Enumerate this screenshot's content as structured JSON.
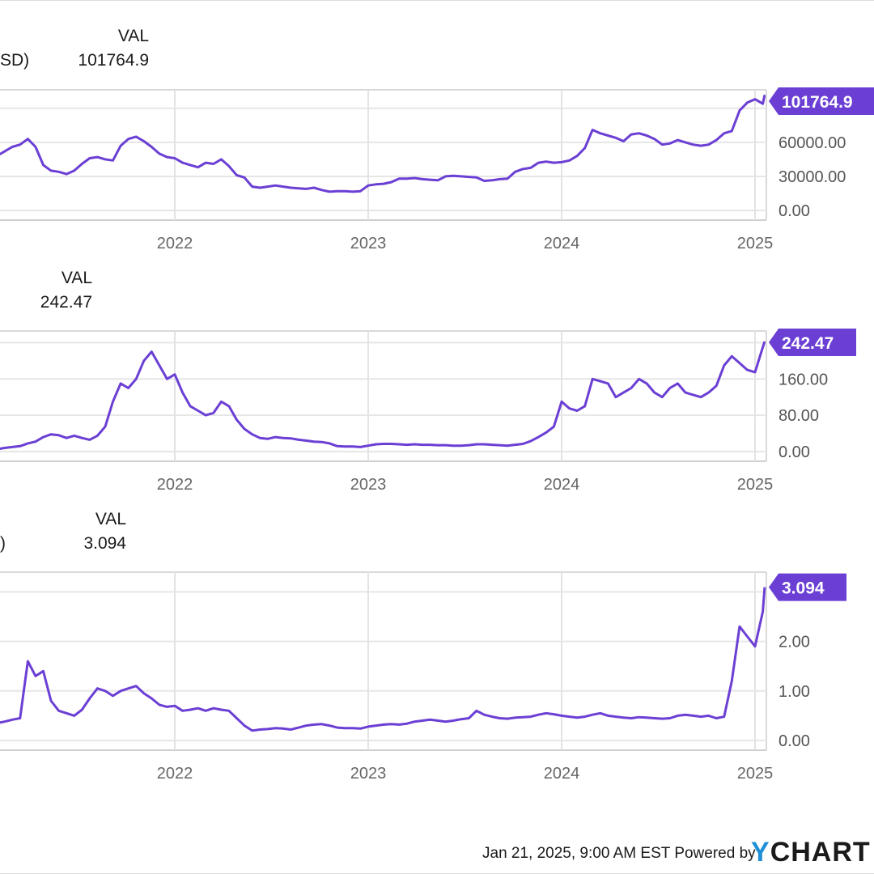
{
  "chart_data": [
    {
      "type": "line",
      "legend": {
        "head": "VAL",
        "series_fragment": "SD)",
        "value": "101764.9"
      },
      "y_ticks": [
        {
          "value": 0,
          "label": "0.00"
        },
        {
          "value": 30000,
          "label": "30000.00"
        },
        {
          "value": 60000,
          "label": "60000.00"
        }
      ],
      "x_ticks": [
        {
          "value": 2022,
          "label": "2022"
        },
        {
          "value": 2023,
          "label": "2023"
        },
        {
          "value": 2024,
          "label": "2024"
        },
        {
          "value": 2025,
          "label": "2025"
        }
      ],
      "last_value": {
        "value": 101764.9,
        "label": "101764.9"
      },
      "color": "#6b3fd4",
      "grid": true,
      "series": [
        {
          "x": [
            2021.08,
            2021.12,
            2021.16,
            2021.2,
            2021.24,
            2021.28,
            2021.32,
            2021.36,
            2021.4,
            2021.44,
            2021.48,
            2021.52,
            2021.56,
            2021.6,
            2021.64,
            2021.68,
            2021.72,
            2021.76,
            2021.8,
            2021.84,
            2021.88,
            2021.92,
            2021.96,
            2022.0,
            2022.04,
            2022.08,
            2022.12,
            2022.16,
            2022.2,
            2022.24,
            2022.28,
            2022.32,
            2022.36,
            2022.4,
            2022.44,
            2022.48,
            2022.52,
            2022.56,
            2022.6,
            2022.64,
            2022.68,
            2022.72,
            2022.76,
            2022.8,
            2022.84,
            2022.88,
            2022.92,
            2022.96,
            2023.0,
            2023.04,
            2023.08,
            2023.12,
            2023.16,
            2023.2,
            2023.24,
            2023.28,
            2023.32,
            2023.36,
            2023.4,
            2023.44,
            2023.48,
            2023.52,
            2023.56,
            2023.6,
            2023.64,
            2023.68,
            2023.72,
            2023.76,
            2023.8,
            2023.84,
            2023.88,
            2023.92,
            2023.96,
            2024.0,
            2024.04,
            2024.08,
            2024.12,
            2024.16,
            2024.2,
            2024.24,
            2024.28,
            2024.32,
            2024.36,
            2024.4,
            2024.44,
            2024.48,
            2024.52,
            2024.56,
            2024.6,
            2024.64,
            2024.68,
            2024.72,
            2024.76,
            2024.8,
            2024.84,
            2024.88,
            2024.92,
            2024.96,
            2025.0,
            2025.04,
            2025.05
          ],
          "values": [
            48000,
            52000,
            56000,
            58000,
            63000,
            56000,
            40000,
            35000,
            34000,
            32000,
            35000,
            41000,
            46000,
            47000,
            45000,
            44000,
            57000,
            63000,
            65000,
            61000,
            56000,
            50000,
            47000,
            46000,
            42000,
            40000,
            38000,
            42000,
            41000,
            45000,
            39000,
            31000,
            29000,
            21000,
            20000,
            21000,
            22000,
            21000,
            20000,
            19500,
            19000,
            20000,
            18000,
            16500,
            17000,
            17000,
            16500,
            17000,
            22000,
            23000,
            23500,
            25000,
            28000,
            28000,
            28500,
            27500,
            27000,
            26500,
            30000,
            30500,
            30000,
            29500,
            29000,
            26000,
            26500,
            27500,
            28000,
            34000,
            36500,
            37500,
            42000,
            43000,
            42000,
            42500,
            44000,
            48000,
            55000,
            71000,
            68000,
            66000,
            64000,
            61000,
            67000,
            68000,
            66000,
            63000,
            58000,
            59000,
            62000,
            60000,
            58000,
            57000,
            58000,
            62000,
            68000,
            70000,
            88000,
            95000,
            98000,
            94000,
            101764.9
          ]
        }
      ]
    },
    {
      "type": "line",
      "legend": {
        "head": "VAL",
        "series_fragment": "",
        "value": "242.47"
      },
      "y_ticks": [
        {
          "value": 0,
          "label": "0.00"
        },
        {
          "value": 80,
          "label": "80.00"
        },
        {
          "value": 160,
          "label": "160.00"
        }
      ],
      "x_ticks": [
        {
          "value": 2022,
          "label": "2022"
        },
        {
          "value": 2023,
          "label": "2023"
        },
        {
          "value": 2024,
          "label": "2024"
        },
        {
          "value": 2025,
          "label": "2025"
        }
      ],
      "last_value": {
        "value": 242.47,
        "label": "242.47"
      },
      "color": "#6b3fd4",
      "grid": true,
      "series": [
        {
          "x": [
            2021.08,
            2021.12,
            2021.16,
            2021.2,
            2021.24,
            2021.28,
            2021.32,
            2021.36,
            2021.4,
            2021.44,
            2021.48,
            2021.52,
            2021.56,
            2021.6,
            2021.64,
            2021.68,
            2021.72,
            2021.76,
            2021.8,
            2021.84,
            2021.88,
            2021.92,
            2021.96,
            2022.0,
            2022.04,
            2022.08,
            2022.12,
            2022.16,
            2022.2,
            2022.24,
            2022.28,
            2022.32,
            2022.36,
            2022.4,
            2022.44,
            2022.48,
            2022.52,
            2022.56,
            2022.6,
            2022.64,
            2022.68,
            2022.72,
            2022.76,
            2022.8,
            2022.84,
            2022.88,
            2022.92,
            2022.96,
            2023.0,
            2023.04,
            2023.08,
            2023.12,
            2023.16,
            2023.2,
            2023.24,
            2023.28,
            2023.32,
            2023.36,
            2023.4,
            2023.44,
            2023.48,
            2023.52,
            2023.56,
            2023.6,
            2023.64,
            2023.68,
            2023.72,
            2023.76,
            2023.8,
            2023.84,
            2023.88,
            2023.92,
            2023.96,
            2024.0,
            2024.04,
            2024.08,
            2024.12,
            2024.16,
            2024.2,
            2024.24,
            2024.28,
            2024.32,
            2024.36,
            2024.4,
            2024.44,
            2024.48,
            2024.52,
            2024.56,
            2024.6,
            2024.64,
            2024.68,
            2024.72,
            2024.76,
            2024.8,
            2024.84,
            2024.88,
            2024.92,
            2024.96,
            2025.0,
            2025.04,
            2025.05
          ],
          "values": [
            5,
            8,
            10,
            12,
            18,
            22,
            32,
            38,
            36,
            30,
            35,
            30,
            26,
            35,
            55,
            110,
            150,
            140,
            160,
            200,
            220,
            190,
            160,
            170,
            130,
            100,
            90,
            80,
            85,
            110,
            100,
            70,
            50,
            38,
            30,
            28,
            32,
            30,
            29,
            26,
            24,
            22,
            21,
            18,
            12,
            11,
            11,
            10,
            13,
            16,
            17,
            17,
            16,
            15,
            16,
            15,
            15,
            14,
            14,
            13,
            13,
            14,
            16,
            16,
            15,
            14,
            13,
            15,
            17,
            23,
            32,
            42,
            55,
            110,
            95,
            90,
            100,
            160,
            155,
            150,
            120,
            130,
            140,
            160,
            150,
            130,
            120,
            140,
            150,
            130,
            125,
            120,
            130,
            145,
            190,
            210,
            195,
            180,
            175,
            230,
            242.47
          ]
        }
      ]
    },
    {
      "type": "line",
      "legend": {
        "head": "VAL",
        "series_fragment": ")",
        "value": "3.094"
      },
      "y_ticks": [
        {
          "value": 0,
          "label": "0.00"
        },
        {
          "value": 1,
          "label": "1.00"
        },
        {
          "value": 2,
          "label": "2.00"
        }
      ],
      "x_ticks": [
        {
          "value": 2022,
          "label": "2022"
        },
        {
          "value": 2023,
          "label": "2023"
        },
        {
          "value": 2024,
          "label": "2024"
        },
        {
          "value": 2025,
          "label": "2025"
        }
      ],
      "last_value": {
        "value": 3.094,
        "label": "3.094"
      },
      "color": "#6b3fd4",
      "grid": true,
      "series": [
        {
          "x": [
            2021.08,
            2021.12,
            2021.16,
            2021.2,
            2021.24,
            2021.28,
            2021.32,
            2021.36,
            2021.4,
            2021.44,
            2021.48,
            2021.52,
            2021.56,
            2021.6,
            2021.64,
            2021.68,
            2021.72,
            2021.76,
            2021.8,
            2021.84,
            2021.88,
            2021.92,
            2021.96,
            2022.0,
            2022.04,
            2022.08,
            2022.12,
            2022.16,
            2022.2,
            2022.24,
            2022.28,
            2022.32,
            2022.36,
            2022.4,
            2022.44,
            2022.48,
            2022.52,
            2022.56,
            2022.6,
            2022.64,
            2022.68,
            2022.72,
            2022.76,
            2022.8,
            2022.84,
            2022.88,
            2022.92,
            2022.96,
            2023.0,
            2023.04,
            2023.08,
            2023.12,
            2023.16,
            2023.2,
            2023.24,
            2023.28,
            2023.32,
            2023.36,
            2023.4,
            2023.44,
            2023.48,
            2023.52,
            2023.56,
            2023.6,
            2023.64,
            2023.68,
            2023.72,
            2023.76,
            2023.8,
            2023.84,
            2023.88,
            2023.92,
            2023.96,
            2024.0,
            2024.04,
            2024.08,
            2024.12,
            2024.16,
            2024.2,
            2024.24,
            2024.28,
            2024.32,
            2024.36,
            2024.4,
            2024.44,
            2024.48,
            2024.52,
            2024.56,
            2024.6,
            2024.64,
            2024.68,
            2024.72,
            2024.76,
            2024.8,
            2024.84,
            2024.88,
            2024.92,
            2024.96,
            2025.0,
            2025.04,
            2025.05
          ],
          "values": [
            0.35,
            0.38,
            0.42,
            0.45,
            1.6,
            1.3,
            1.4,
            0.8,
            0.6,
            0.55,
            0.5,
            0.62,
            0.85,
            1.05,
            1.0,
            0.9,
            1.0,
            1.05,
            1.1,
            0.95,
            0.85,
            0.72,
            0.68,
            0.7,
            0.6,
            0.62,
            0.65,
            0.6,
            0.65,
            0.62,
            0.6,
            0.45,
            0.3,
            0.2,
            0.22,
            0.23,
            0.25,
            0.24,
            0.22,
            0.26,
            0.3,
            0.32,
            0.33,
            0.3,
            0.26,
            0.25,
            0.25,
            0.24,
            0.28,
            0.3,
            0.32,
            0.33,
            0.32,
            0.34,
            0.38,
            0.4,
            0.42,
            0.4,
            0.38,
            0.4,
            0.43,
            0.45,
            0.6,
            0.52,
            0.48,
            0.45,
            0.44,
            0.46,
            0.47,
            0.48,
            0.52,
            0.55,
            0.53,
            0.5,
            0.48,
            0.46,
            0.48,
            0.52,
            0.55,
            0.5,
            0.48,
            0.46,
            0.45,
            0.47,
            0.46,
            0.45,
            0.44,
            0.45,
            0.5,
            0.52,
            0.5,
            0.48,
            0.5,
            0.45,
            0.48,
            1.2,
            2.3,
            2.1,
            1.9,
            2.6,
            3.094
          ]
        }
      ]
    }
  ],
  "footer": {
    "timestamp": "Jan 21, 2025, 9:00 AM EST",
    "powered_by": "Powered by",
    "brand_y": "Y",
    "brand_rest": "CHART"
  }
}
